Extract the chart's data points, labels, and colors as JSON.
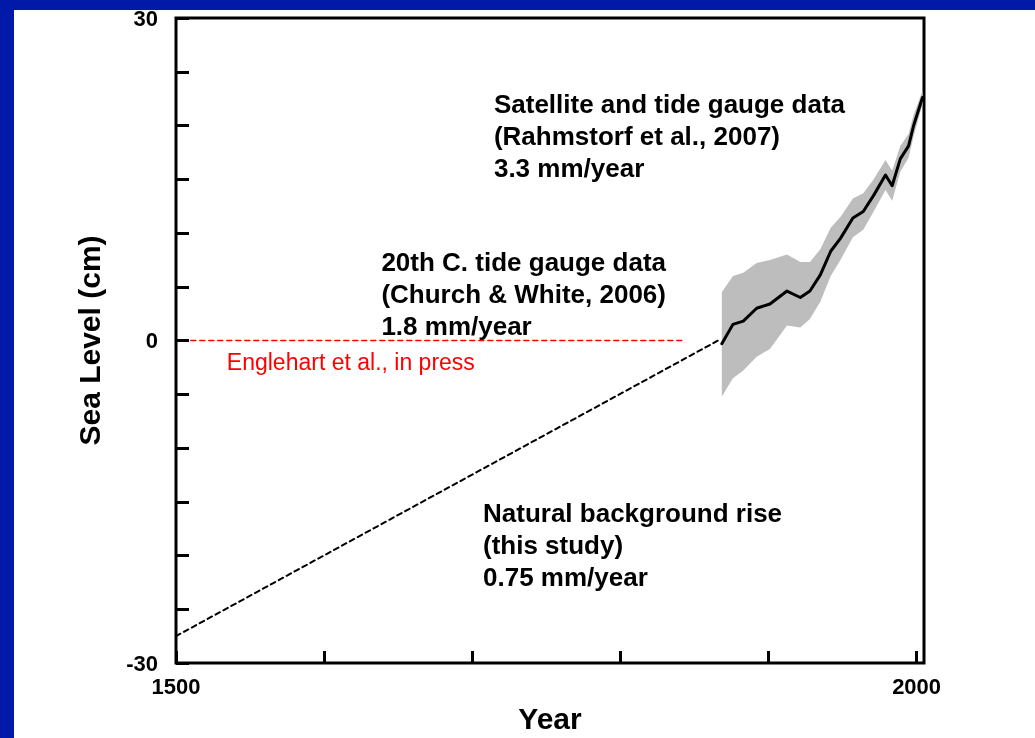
{
  "chart_data": {
    "type": "line",
    "xlabel": "Year",
    "ylabel": "Sea Level (cm)",
    "xlim": [
      1500,
      2005
    ],
    "xticks": [
      1500,
      {
        "value": 1600,
        "label": null
      },
      {
        "value": 1700,
        "label": null
      },
      {
        "value": 1800,
        "label": null
      },
      {
        "value": 1900,
        "label": null
      },
      2000
    ],
    "ylim": [
      -30,
      30
    ],
    "yticks": [
      -30,
      {
        "value": -25,
        "label": null
      },
      {
        "value": -20,
        "label": null
      },
      {
        "value": -15,
        "label": null
      },
      {
        "value": -10,
        "label": null
      },
      {
        "value": -5,
        "label": null
      },
      0,
      {
        "value": 5,
        "label": null
      },
      {
        "value": 10,
        "label": null
      },
      {
        "value": 15,
        "label": null
      },
      {
        "value": 20,
        "label": null
      },
      {
        "value": 25,
        "label": null
      },
      30
    ],
    "grid": false,
    "marker": "none",
    "annotations": [
      "Satellite and tide gauge data\n(Rahmstorf et al., 2007)\n3.3 mm/year",
      "20th C. tide gauge data\n(Church & White, 2006)\n1.8 mm/year",
      "Natural background rise\n(this study)\n0.75 mm/year"
    ],
    "series": [
      {
        "color": "#000000",
        "line_style": "dashed",
        "x": [
          1500,
          1866
        ],
        "values": [
          -27.5,
          0
        ]
      },
      {
        "name": "Englehart et al., in press",
        "color": "#ff0000",
        "line_style": "dashed",
        "x": [
          1510,
          1844
        ],
        "values": [
          0,
          0
        ]
      },
      {
        "color": "#000000",
        "line_style": "solid",
        "x": [
          1868.5,
          1876,
          1883,
          1892,
          1901,
          1912.5,
          1921.5,
          1928,
          1935,
          1942,
          1948.6,
          1957,
          1964,
          1971,
          1979,
          1983.5,
          1989,
          1994.6,
          1998,
          2004
        ],
        "values": [
          -0.3,
          1.5,
          1.8,
          3.0,
          3.4,
          4.6,
          4.0,
          4.6,
          6.1,
          8.3,
          9.5,
          11.4,
          12.0,
          13.5,
          15.4,
          14.4,
          16.9,
          18.1,
          20.0,
          22.6
        ],
        "lower": [
          -5.2,
          -3.5,
          -2.8,
          -1.5,
          -0.8,
          1.4,
          1.2,
          2.0,
          3.6,
          6.0,
          7.5,
          9.6,
          10.3,
          12.0,
          14.0,
          13.0,
          15.7,
          17.0,
          19.0,
          22.0
        ],
        "upper": [
          4.5,
          6.0,
          6.3,
          7.2,
          7.5,
          8.0,
          7.3,
          7.3,
          8.5,
          10.5,
          11.5,
          13.2,
          13.7,
          15.0,
          16.8,
          15.8,
          18.1,
          19.2,
          21.0,
          23.2
        ]
      }
    ]
  }
}
